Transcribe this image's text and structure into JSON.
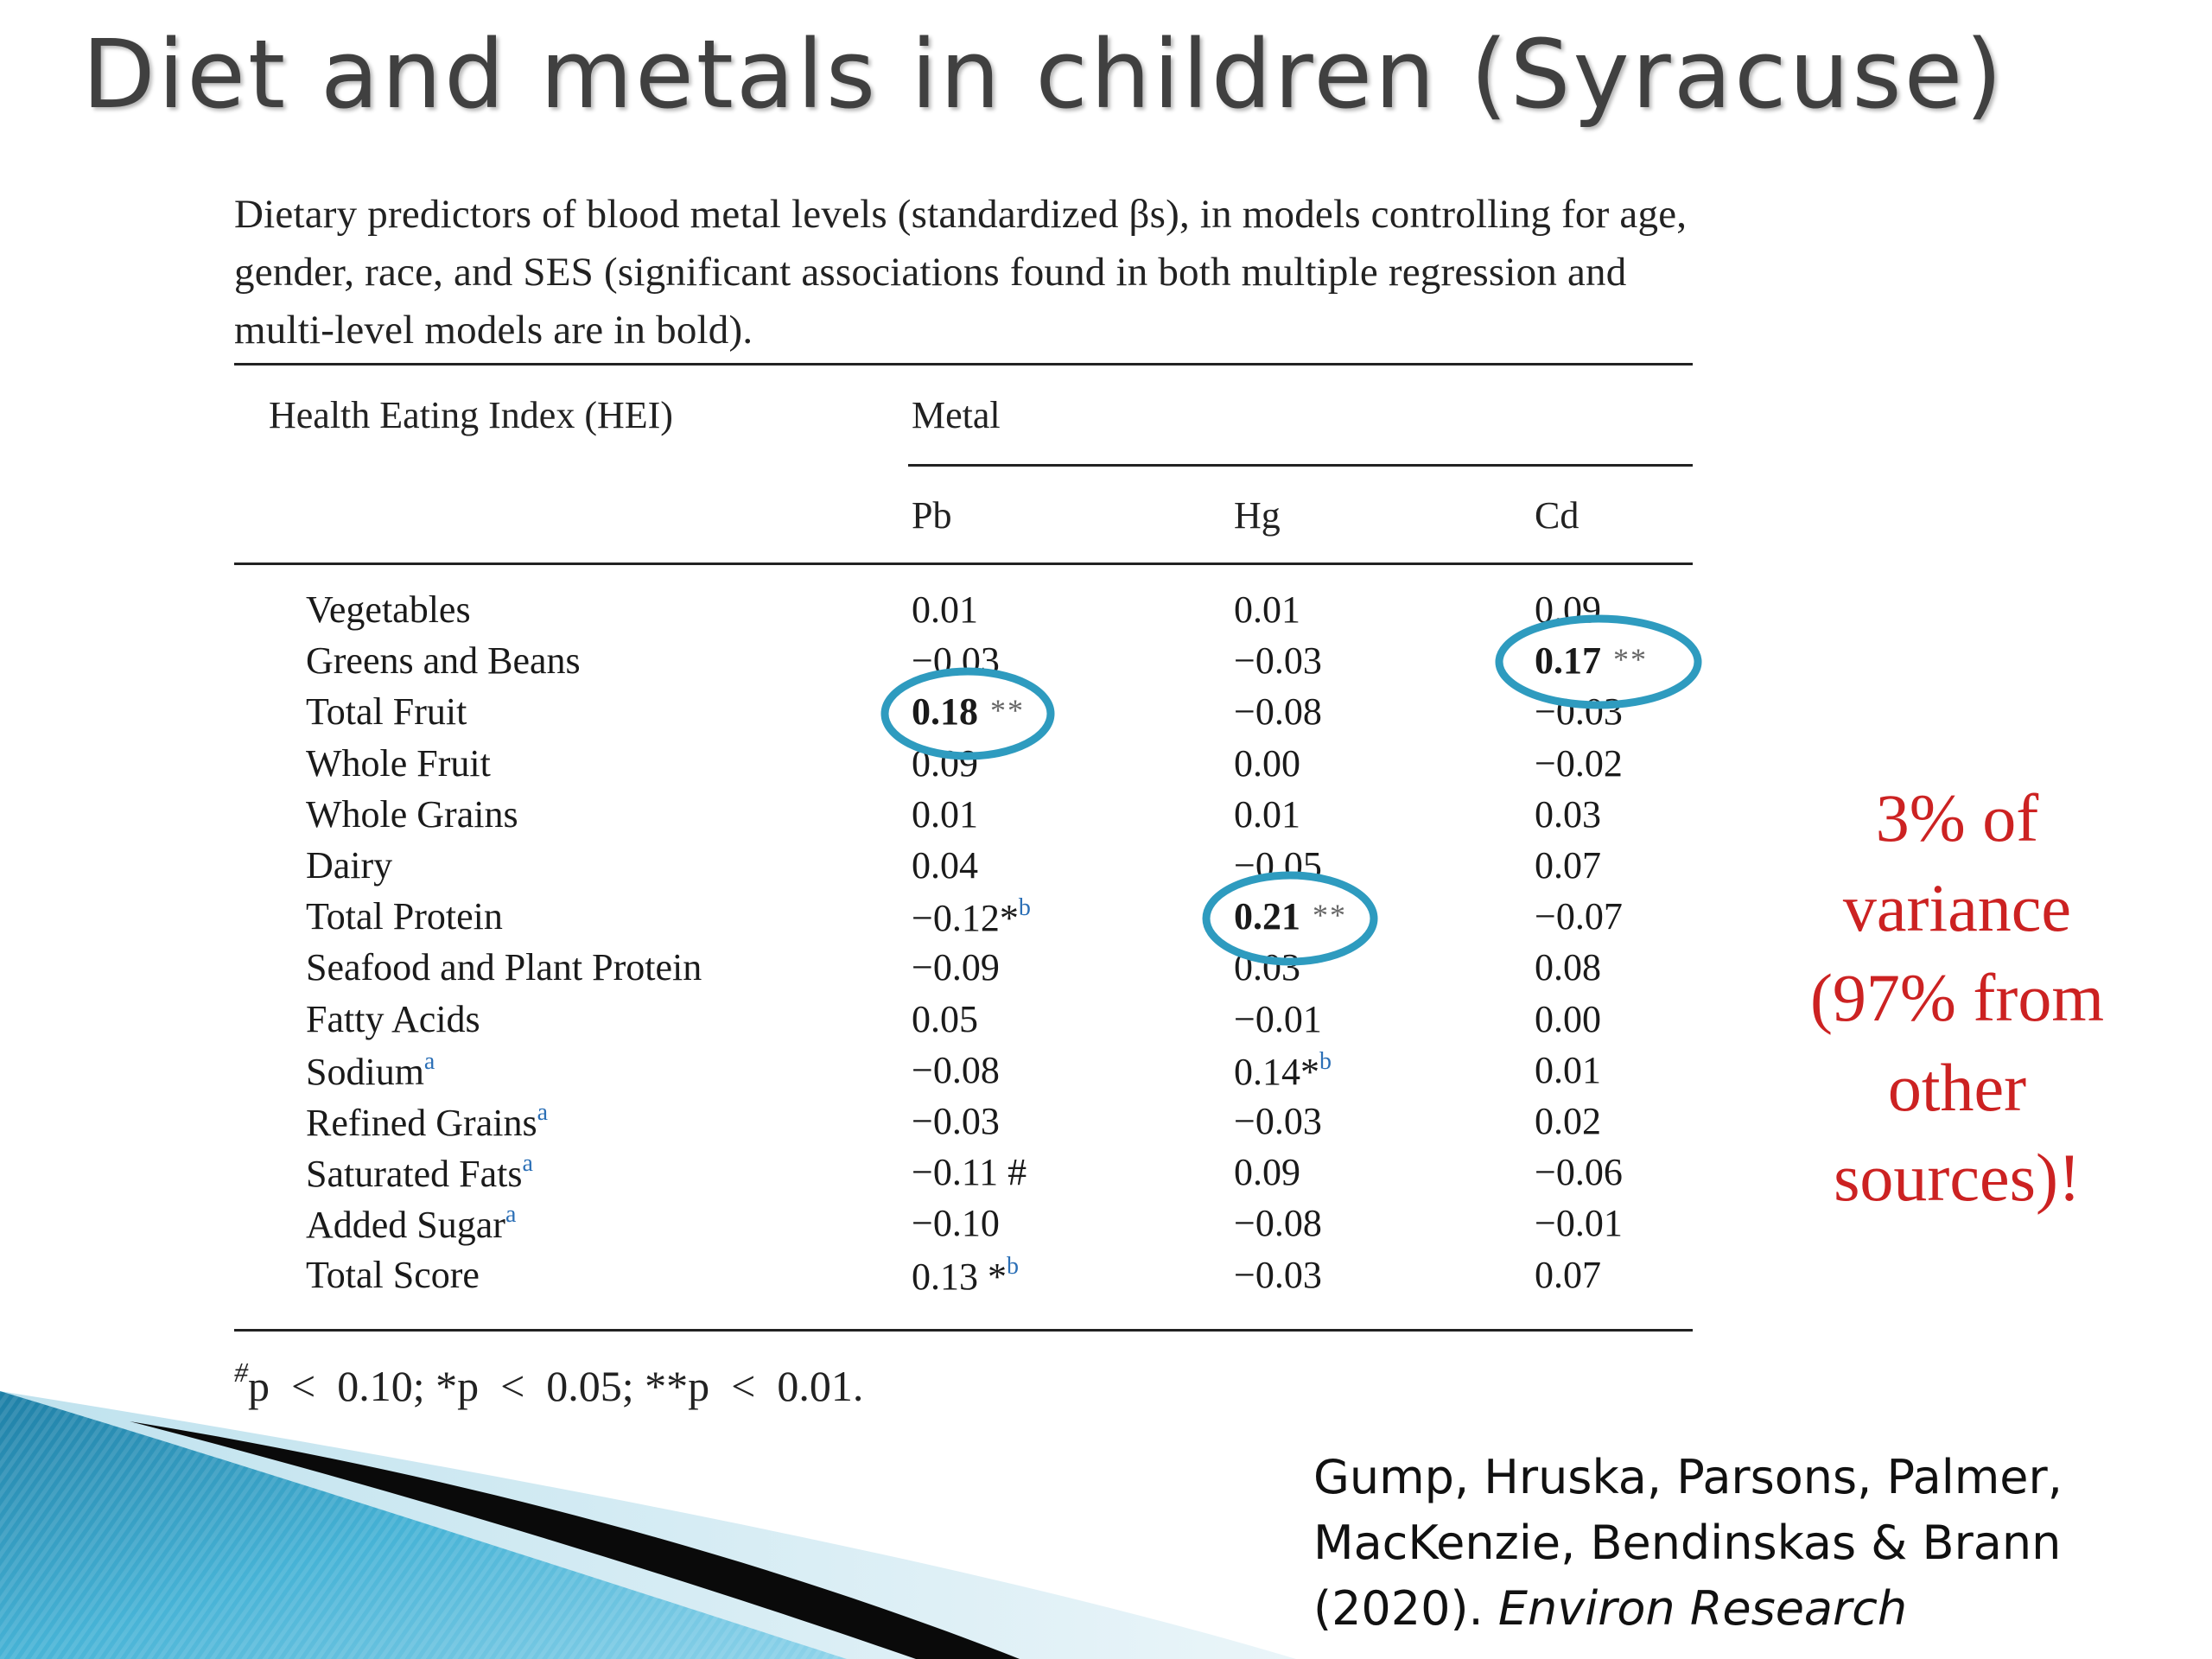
{
  "slide": {
    "title": "Diet and metals in children (Syracuse)"
  },
  "table": {
    "caption": "Dietary predictors of blood metal levels (standardized βs), in models controlling for age, gender, race, and SES (significant associations found in both multiple regression and multi-level models are in bold).",
    "header_index": "Health Eating Index (HEI)",
    "header_group": "Metal",
    "columns": [
      "Pb",
      "Hg",
      "Cd"
    ],
    "rows": [
      {
        "name": "Vegetables",
        "name_sup": "",
        "pb": "0.01",
        "pb_sig": "",
        "pb_sup": "",
        "pb_bold": false,
        "hg": "0.01",
        "hg_sig": "",
        "hg_sup": "",
        "hg_bold": false,
        "cd": "0.09",
        "cd_sig": "",
        "cd_sup": "",
        "cd_bold": false
      },
      {
        "name": "Greens and Beans",
        "name_sup": "",
        "pb": "−0.03",
        "pb_sig": "",
        "pb_sup": "",
        "pb_bold": false,
        "hg": "−0.03",
        "hg_sig": "",
        "hg_sup": "",
        "hg_bold": false,
        "cd": "0.17",
        "cd_sig": "**",
        "cd_sup": "",
        "cd_bold": true
      },
      {
        "name": "Total Fruit",
        "name_sup": "",
        "pb": "0.18",
        "pb_sig": "**",
        "pb_sup": "",
        "pb_bold": true,
        "hg": "−0.08",
        "hg_sig": "",
        "hg_sup": "",
        "hg_bold": false,
        "cd": "−0.03",
        "cd_sig": "",
        "cd_sup": "",
        "cd_bold": false
      },
      {
        "name": "Whole Fruit",
        "name_sup": "",
        "pb": "0.09",
        "pb_sig": "",
        "pb_sup": "",
        "pb_bold": false,
        "hg": "0.00",
        "hg_sig": "",
        "hg_sup": "",
        "hg_bold": false,
        "cd": "−0.02",
        "cd_sig": "",
        "cd_sup": "",
        "cd_bold": false
      },
      {
        "name": "Whole Grains",
        "name_sup": "",
        "pb": "0.01",
        "pb_sig": "",
        "pb_sup": "",
        "pb_bold": false,
        "hg": "0.01",
        "hg_sig": "",
        "hg_sup": "",
        "hg_bold": false,
        "cd": "0.03",
        "cd_sig": "",
        "cd_sup": "",
        "cd_bold": false
      },
      {
        "name": "Dairy",
        "name_sup": "",
        "pb": "0.04",
        "pb_sig": "",
        "pb_sup": "",
        "pb_bold": false,
        "hg": "−0.05",
        "hg_sig": "",
        "hg_sup": "",
        "hg_bold": false,
        "cd": "0.07",
        "cd_sig": "",
        "cd_sup": "",
        "cd_bold": false
      },
      {
        "name": "Total Protein",
        "name_sup": "",
        "pb": "−0.12*",
        "pb_sig": "",
        "pb_sup": "b",
        "pb_bold": false,
        "hg": "0.21",
        "hg_sig": "**",
        "hg_sup": "",
        "hg_bold": true,
        "cd": "−0.07",
        "cd_sig": "",
        "cd_sup": "",
        "cd_bold": false
      },
      {
        "name": "Seafood and Plant Protein",
        "name_sup": "",
        "pb": "−0.09",
        "pb_sig": "",
        "pb_sup": "",
        "pb_bold": false,
        "hg": "0.03",
        "hg_sig": "",
        "hg_sup": "",
        "hg_bold": false,
        "cd": "0.08",
        "cd_sig": "",
        "cd_sup": "",
        "cd_bold": false
      },
      {
        "name": "Fatty Acids",
        "name_sup": "",
        "pb": "0.05",
        "pb_sig": "",
        "pb_sup": "",
        "pb_bold": false,
        "hg": "−0.01",
        "hg_sig": "",
        "hg_sup": "",
        "hg_bold": false,
        "cd": "0.00",
        "cd_sig": "",
        "cd_sup": "",
        "cd_bold": false
      },
      {
        "name": "Sodium",
        "name_sup": "a",
        "pb": "−0.08",
        "pb_sig": "",
        "pb_sup": "",
        "pb_bold": false,
        "hg": "0.14*",
        "hg_sig": "",
        "hg_sup": "b",
        "hg_bold": false,
        "cd": "0.01",
        "cd_sig": "",
        "cd_sup": "",
        "cd_bold": false
      },
      {
        "name": "Refined Grains",
        "name_sup": "a",
        "pb": "−0.03",
        "pb_sig": "",
        "pb_sup": "",
        "pb_bold": false,
        "hg": "−0.03",
        "hg_sig": "",
        "hg_sup": "",
        "hg_bold": false,
        "cd": "0.02",
        "cd_sig": "",
        "cd_sup": "",
        "cd_bold": false
      },
      {
        "name": "Saturated Fats",
        "name_sup": "a",
        "pb": "−0.11 #",
        "pb_sig": "",
        "pb_sup": "",
        "pb_bold": false,
        "hg": "0.09",
        "hg_sig": "",
        "hg_sup": "",
        "hg_bold": false,
        "cd": "−0.06",
        "cd_sig": "",
        "cd_sup": "",
        "cd_bold": false
      },
      {
        "name": "Added Sugar",
        "name_sup": "a",
        "pb": "−0.10",
        "pb_sig": "",
        "pb_sup": "",
        "pb_bold": false,
        "hg": "−0.08",
        "hg_sig": "",
        "hg_sup": "",
        "hg_bold": false,
        "cd": "−0.01",
        "cd_sig": "",
        "cd_sup": "",
        "cd_bold": false
      },
      {
        "name": "Total Score",
        "name_sup": "",
        "pb": "0.13 *",
        "pb_sig": "",
        "pb_sup": "b",
        "pb_bold": false,
        "hg": "−0.03",
        "hg_sig": "",
        "hg_sup": "",
        "hg_bold": false,
        "cd": "0.07",
        "cd_sig": "",
        "cd_sup": "",
        "cd_bold": false
      }
    ],
    "footnote": {
      "sup": "#",
      "text": "p  <  0.10; *p  <  0.05; **p  <  0.01."
    }
  },
  "note": {
    "lines": [
      "3% of",
      "variance",
      "(97% from",
      "other",
      "sources)!"
    ]
  },
  "citation": {
    "line1": "Gump, Hruska, Parsons, Palmer,",
    "line2": "MacKenzie, Bendinskas & Brann",
    "line3_prefix": "(2020). ",
    "journal": "Environ Research"
  },
  "colors": {
    "title": "#404040",
    "note": "#cc2222",
    "highlight_circle": "#2e9bbf",
    "superscript_link": "#2b6fb6"
  }
}
